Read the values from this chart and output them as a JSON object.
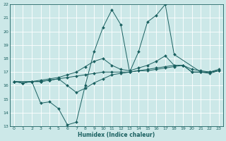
{
  "xlabel": "Humidex (Indice chaleur)",
  "bg_color": "#cce8e8",
  "grid_color": "#ffffff",
  "line_color": "#1a6060",
  "xlim": [
    -0.5,
    23.5
  ],
  "ylim": [
    13,
    22
  ],
  "xticks": [
    0,
    1,
    2,
    3,
    4,
    5,
    6,
    7,
    8,
    9,
    10,
    11,
    12,
    13,
    14,
    15,
    16,
    17,
    18,
    19,
    20,
    21,
    22,
    23
  ],
  "yticks": [
    13,
    14,
    15,
    16,
    17,
    18,
    19,
    20,
    21,
    22
  ],
  "series": [
    {
      "x": [
        0,
        1,
        2,
        3,
        4,
        5,
        6,
        7,
        8,
        9,
        10,
        11,
        12,
        13,
        14,
        15,
        16,
        17,
        18,
        19,
        20,
        21,
        22,
        23
      ],
      "y": [
        16.3,
        16.2,
        16.3,
        16.3,
        16.4,
        16.5,
        16.6,
        16.7,
        16.8,
        16.9,
        17.0,
        17.0,
        17.0,
        17.0,
        17.1,
        17.1,
        17.2,
        17.3,
        17.4,
        17.5,
        17.0,
        17.0,
        17.0,
        17.1
      ]
    },
    {
      "x": [
        0,
        1,
        2,
        3,
        4,
        5,
        6,
        7,
        8,
        9,
        10,
        11,
        12,
        13,
        14,
        15,
        16,
        17,
        18,
        19,
        20,
        21,
        22,
        23
      ],
      "y": [
        16.3,
        16.2,
        16.3,
        16.4,
        16.5,
        16.6,
        16.8,
        17.0,
        17.4,
        17.8,
        18.0,
        17.5,
        17.2,
        17.1,
        17.3,
        17.5,
        17.8,
        18.2,
        17.5,
        17.5,
        17.2,
        17.1,
        17.0,
        17.2
      ]
    },
    {
      "x": [
        0,
        1,
        2,
        3,
        4,
        5,
        6,
        7,
        8,
        9,
        10,
        11,
        12,
        13,
        14,
        15,
        16,
        17,
        18,
        19,
        20,
        21,
        22,
        23
      ],
      "y": [
        16.3,
        16.2,
        16.3,
        16.3,
        16.4,
        16.5,
        16.0,
        15.5,
        15.8,
        16.2,
        16.5,
        16.8,
        16.9,
        17.0,
        17.1,
        17.2,
        17.3,
        17.4,
        17.5,
        17.5,
        17.0,
        17.0,
        17.0,
        17.1
      ]
    },
    {
      "x": [
        0,
        2,
        3,
        4,
        5,
        6,
        7,
        8,
        9,
        10,
        11,
        12,
        13,
        14,
        15,
        16,
        17,
        18,
        21,
        22,
        23
      ],
      "y": [
        16.3,
        16.3,
        14.7,
        14.8,
        14.3,
        13.1,
        13.3,
        16.0,
        18.5,
        20.3,
        21.6,
        20.5,
        17.0,
        18.5,
        20.7,
        21.2,
        22.0,
        18.3,
        17.0,
        16.9,
        17.1
      ]
    }
  ]
}
